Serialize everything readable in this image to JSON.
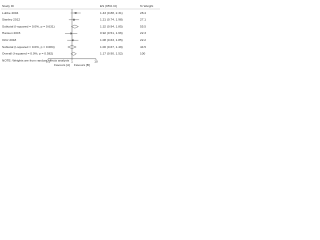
{
  "chart_data": {
    "type": "forest",
    "headers": [
      "Study ID",
      "ES (95% CI)",
      "% Weight"
    ],
    "categories": [
      "Lubbe 2004",
      "Stanley 2012",
      "Subtotal (I-squared = 0.0%, p = 0.631)",
      "Hansen 2015",
      "Ortiz 2018",
      "Subtotal (I-squared = 0.0%, p = 0.684)",
      "Overall (I-squared = 0.0%, p = 0.582)"
    ],
    "shapes": [
      "square",
      "square",
      "diamond",
      "square",
      "square",
      "diamond",
      "diamond"
    ],
    "values": [
      1.43,
      1.21,
      1.32,
      0.92,
      1.08,
      1.0,
      1.17
    ],
    "lower": [
      0.88,
      0.74,
      0.94,
      0.51,
      0.63,
      0.67,
      0.9
    ],
    "upper": [
      2.31,
      1.98,
      1.85,
      1.66,
      1.85,
      1.49,
      1.52
    ],
    "value_labels": [
      "1.43 (0.88, 2.31)",
      "1.21 (0.74, 1.98)",
      "1.32 (0.94, 1.85)",
      "0.92 (0.51, 1.66)",
      "1.08 (0.63, 1.85)",
      "1.00 (0.67, 1.49)",
      "1.17 (0.90, 1.52)"
    ],
    "weights": [
      28.4,
      27.1,
      55.5,
      22.3,
      22.2,
      44.5,
      100
    ],
    "note": "NOTE: Weights are from random effects analysis",
    "xlim": [
      0.1,
      10
    ],
    "xticks": [
      0.1,
      1,
      10
    ],
    "log_x": true,
    "null_line": 1,
    "favours": [
      "Favours [A]",
      "Favours [B]"
    ],
    "color": "#555"
  }
}
